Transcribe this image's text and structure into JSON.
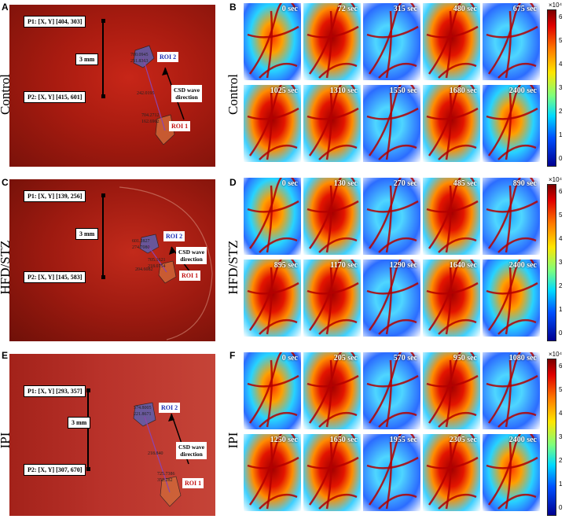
{
  "rows": [
    {
      "photo_letter": "A",
      "grid_letter": "B",
      "group": "Control",
      "p1": "P1: [X, Y] [404, 303]",
      "p2": "P2: [X, Y] [415, 601]",
      "scale": "3 mm",
      "roi2": "ROI 2",
      "roi1": "ROI 1",
      "csd_line1": "CSD wave",
      "csd_line2": "direction",
      "num_a": "780.0945",
      "num_b": "251.8363",
      "num_c": "242.0195",
      "num_d": "704.2712",
      "num_e": "162.6962",
      "times": [
        "0 sec",
        "72 sec",
        "315 sec",
        "480 sec",
        "675 sec",
        "1025 sec",
        "1310 sec",
        "1550 sec",
        "1680 sec",
        "2400 sec"
      ]
    },
    {
      "photo_letter": "C",
      "grid_letter": "D",
      "group": "HFD/STZ",
      "p1": "P1: [X, Y] [139, 256]",
      "p2": "P2: [X, Y] [145, 583]",
      "scale": "3 mm",
      "roi2": "ROI 2",
      "roi1": "ROI 1",
      "csd_line1": "CSD wave",
      "csd_line2": "direction",
      "num_a": "601.2827",
      "num_b": "274.7080",
      "num_c": "204.6082",
      "num_d": "705.1621",
      "num_e": "218.0754",
      "times": [
        "0 sec",
        "130 sec",
        "270 sec",
        "485 sec",
        "890 sec",
        "895 sec",
        "1170 sec",
        "1290 sec",
        "1640 sec",
        "2400 sec"
      ]
    },
    {
      "photo_letter": "E",
      "grid_letter": "F",
      "group": "IPI",
      "p1": "P1: [X, Y] [293, 357]",
      "p2": "P2: [X, Y] [307, 670]",
      "scale": "3 mm",
      "roi2": "ROI 2",
      "roi1": "ROI 1",
      "csd_line1": "CSD wave",
      "csd_line2": "direction",
      "num_a": "574.8005",
      "num_b": "221.8671",
      "num_c": "218.840",
      "num_d": "725.7386",
      "num_e": "352.282",
      "times": [
        "0 sec",
        "205 sec",
        "570 sec",
        "950 sec",
        "1080 sec",
        "1250 sec",
        "1650 sec",
        "1955 sec",
        "2305 sec",
        "2400 sec"
      ]
    }
  ],
  "colorbar": {
    "exponent": "×10⁴",
    "ticks": [
      "6",
      "5",
      "4",
      "3",
      "2",
      "1",
      "0"
    ]
  },
  "colors": {
    "low": "#000090",
    "mid": "#7dff7d",
    "high": "#7a0000",
    "tissue": "#b01e12"
  }
}
